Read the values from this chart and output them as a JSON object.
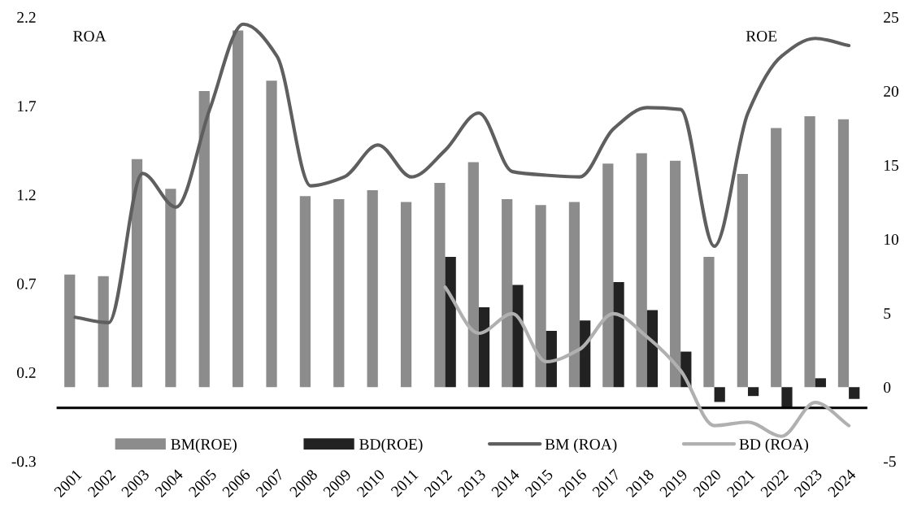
{
  "chart_data": {
    "type": "bar",
    "ylabel": "ROA",
    "y2label": "ROE",
    "categories": [
      "2001",
      "2002",
      "2003",
      "2004",
      "2005",
      "2006",
      "2007",
      "2008",
      "2009",
      "2010",
      "2011",
      "2012",
      "2013",
      "2014",
      "2015",
      "2016",
      "2017",
      "2018",
      "2019",
      "2020",
      "2021",
      "2022",
      "2023",
      "2024"
    ],
    "series": [
      {
        "name": "BM(ROE)",
        "axis": "y2",
        "color": "#8c8c8c",
        "values": [
          7.6,
          7.5,
          15.4,
          13.4,
          20.0,
          24.1,
          20.7,
          12.9,
          12.7,
          13.3,
          12.5,
          13.8,
          15.2,
          12.7,
          12.3,
          12.5,
          15.1,
          15.8,
          15.3,
          8.8,
          14.4,
          17.5,
          18.3,
          18.1
        ]
      },
      {
        "name": "BD(ROE)",
        "axis": "y2",
        "color": "#222222",
        "values": [
          null,
          null,
          null,
          null,
          null,
          null,
          null,
          null,
          null,
          null,
          null,
          8.8,
          5.4,
          6.9,
          3.8,
          4.5,
          7.1,
          5.2,
          2.4,
          -1.0,
          -0.6,
          -1.4,
          0.6,
          -0.8
        ]
      },
      {
        "name": "BM (ROA)",
        "type": "line",
        "color": "#5f5f5f",
        "values": [
          0.51,
          0.48,
          1.32,
          1.13,
          1.68,
          2.16,
          1.98,
          1.25,
          1.3,
          1.48,
          1.3,
          1.45,
          1.66,
          1.33,
          1.31,
          1.3,
          1.57,
          1.69,
          1.68,
          0.91,
          1.66,
          1.98,
          2.08,
          2.04
        ]
      },
      {
        "name": "BD (ROA)",
        "type": "line",
        "color": "#b0b0b0",
        "values": [
          null,
          null,
          null,
          null,
          null,
          null,
          null,
          null,
          null,
          null,
          null,
          0.68,
          0.42,
          0.53,
          0.26,
          0.33,
          0.53,
          0.4,
          0.21,
          -0.1,
          -0.08,
          -0.16,
          0.03,
          -0.1
        ]
      }
    ],
    "ylim": [
      -0.3,
      2.2
    ],
    "yticks": [
      -0.3,
      0.2,
      0.7,
      1.2,
      1.7,
      2.2
    ],
    "y2lim": [
      -5,
      25
    ],
    "y2ticks": [
      -5,
      0,
      5,
      10,
      15,
      20,
      25
    ],
    "ref_lines": [
      {
        "axis": "y",
        "value": 0,
        "color": "#000000"
      }
    ],
    "legend": "bottom",
    "grid": false,
    "marker": "none",
    "line_style": "solid"
  }
}
